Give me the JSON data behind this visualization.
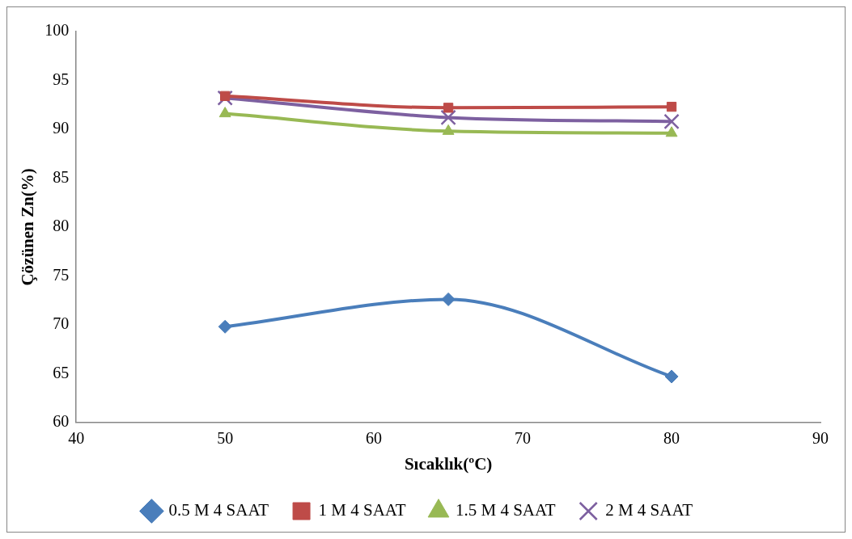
{
  "chart_data": {
    "type": "line",
    "xlabel": "Sıcaklık(ºC)",
    "ylabel": "Çözünen Zn(%)",
    "x": [
      50,
      65,
      80
    ],
    "series": [
      {
        "name": "0.5 M 4 SAAT",
        "color": "#4a7ebb",
        "marker": "diamond",
        "values": [
          69.8,
          72.6,
          64.7
        ]
      },
      {
        "name": "1 M 4 SAAT",
        "color": "#be4b48",
        "marker": "square",
        "values": [
          93.4,
          92.2,
          92.3
        ]
      },
      {
        "name": "1.5 M 4 SAAT",
        "color": "#98b954",
        "marker": "triangle",
        "values": [
          91.6,
          89.8,
          89.6
        ]
      },
      {
        "name": "2 M 4 SAAT",
        "color": "#7d60a0",
        "marker": "cross",
        "values": [
          93.2,
          91.2,
          90.8
        ]
      }
    ],
    "xlim": [
      40,
      90
    ],
    "xticks": [
      40,
      50,
      60,
      70,
      80,
      90
    ],
    "ylim": [
      60,
      100
    ],
    "yticks": [
      60,
      65,
      70,
      75,
      80,
      85,
      90,
      95,
      100
    ],
    "grid": false,
    "legend": "bottom"
  }
}
